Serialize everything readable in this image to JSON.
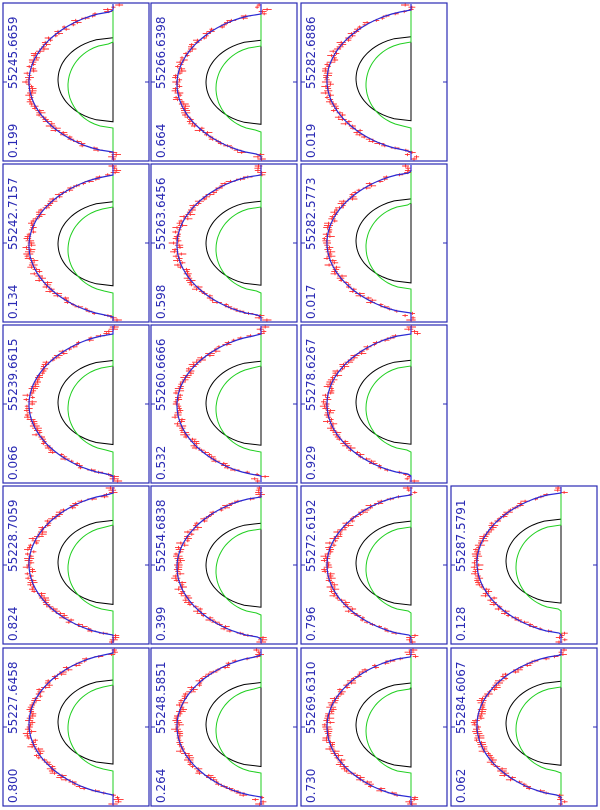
{
  "panels": [
    {
      "label": "55227.6458",
      "phase": "0.800"
    },
    {
      "label": "55228.7059",
      "phase": "0.824"
    },
    {
      "label": "55239.6615",
      "phase": "0.066"
    },
    {
      "label": "55242.7157",
      "phase": "0.134"
    },
    {
      "label": "55245.6659",
      "phase": "0.199"
    },
    {
      "label": "55248.5851",
      "phase": "0.264"
    },
    {
      "label": "55254.6838",
      "phase": "0.399"
    },
    {
      "label": "55260.6666",
      "phase": "0.532"
    },
    {
      "label": "55263.6456",
      "phase": "0.598"
    },
    {
      "label": "55266.6398",
      "phase": "0.664"
    },
    {
      "label": "55269.6310",
      "phase": "0.730"
    },
    {
      "label": "55272.6192",
      "phase": "0.796"
    },
    {
      "label": "55278.6267",
      "phase": "0.929"
    },
    {
      "label": "55282.5773",
      "phase": "0.017"
    },
    {
      "label": "55282.6886",
      "phase": "0.019"
    },
    {
      "label": "55284.6067",
      "phase": "0.062"
    },
    {
      "label": "55287.5791",
      "phase": "0.128"
    }
  ]
}
